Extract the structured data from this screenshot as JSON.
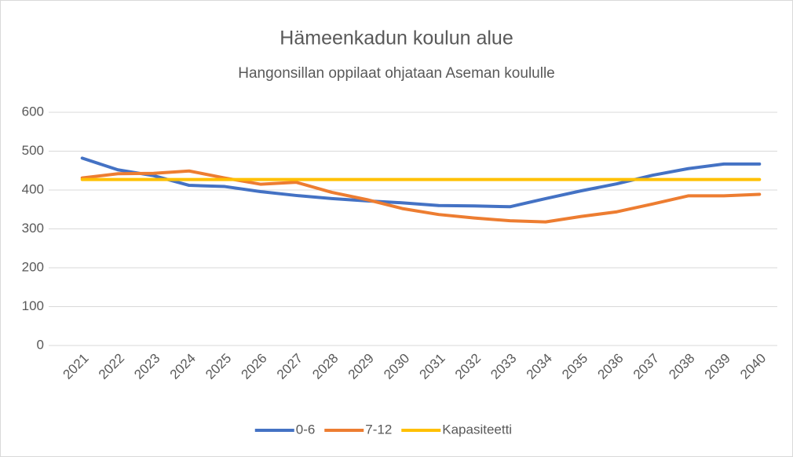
{
  "chart_data": {
    "type": "line",
    "title": "Hämeenkadun koulun alue",
    "subtitle": "Hangonsillan oppilaat ohjataan Aseman koululle",
    "categories": [
      "2021",
      "2022",
      "2023",
      "2024",
      "2025",
      "2026",
      "2027",
      "2028",
      "2029",
      "2030",
      "2031",
      "2032",
      "2033",
      "2034",
      "2035",
      "2036",
      "2037",
      "2038",
      "2039",
      "2040"
    ],
    "series": [
      {
        "name": "0-6",
        "color": "#4472c4",
        "values": [
          482,
          452,
          437,
          412,
          409,
          396,
          386,
          378,
          372,
          367,
          360,
          359,
          357,
          378,
          398,
          416,
          438,
          455,
          467,
          467
        ]
      },
      {
        "name": "7-12",
        "color": "#ed7d31",
        "values": [
          431,
          442,
          443,
          449,
          431,
          415,
          420,
          394,
          375,
          352,
          337,
          328,
          321,
          318,
          332,
          344,
          364,
          385,
          385,
          389
        ]
      },
      {
        "name": "Kapasiteetti",
        "color": "#ffc000",
        "values": [
          427,
          427,
          427,
          427,
          427,
          427,
          427,
          427,
          427,
          427,
          427,
          427,
          427,
          427,
          427,
          427,
          427,
          427,
          427,
          427
        ]
      }
    ],
    "ylim": [
      0,
      600
    ],
    "yticks": [
      0,
      100,
      200,
      300,
      400,
      500,
      600
    ],
    "grid": true,
    "legend": "bottom"
  }
}
